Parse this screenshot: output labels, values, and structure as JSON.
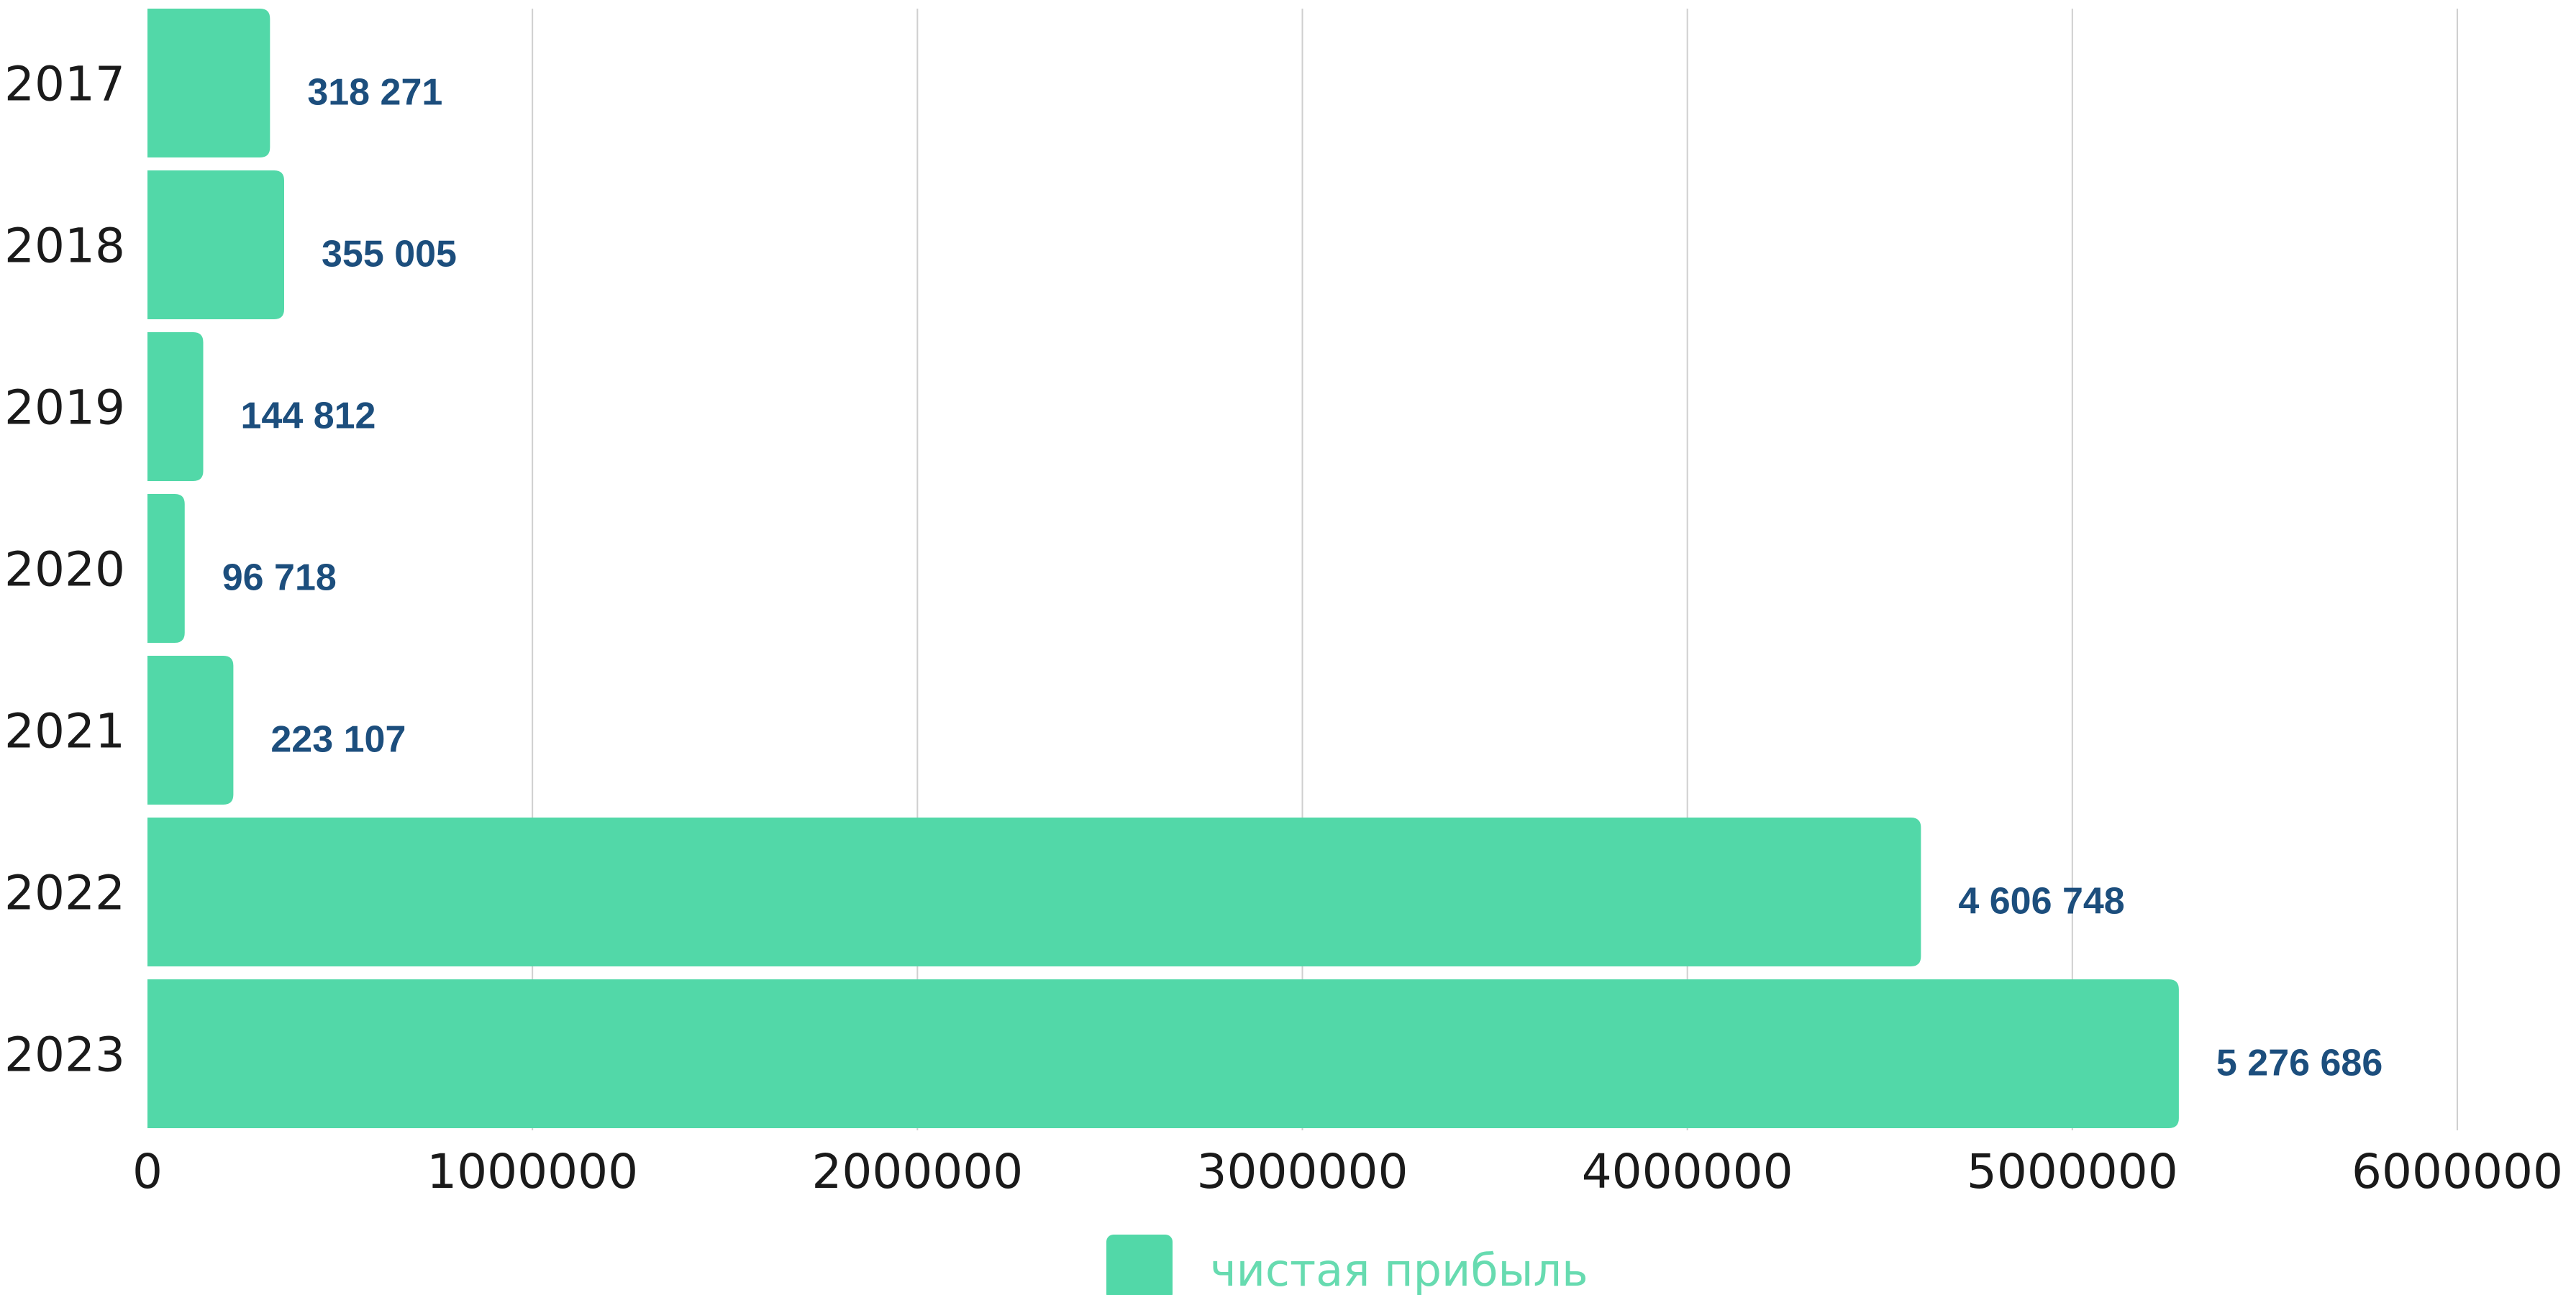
{
  "chart_data": {
    "type": "bar",
    "orientation": "horizontal",
    "categories": [
      "2017",
      "2018",
      "2019",
      "2020",
      "2021",
      "2022",
      "2023"
    ],
    "series": [
      {
        "name": "чистая прибыль",
        "values": [
          318271,
          355005,
          144812,
          96718,
          223107,
          4606748,
          5276686
        ],
        "value_labels": [
          "318 271",
          "355 005",
          "144 812",
          "96 718",
          "223 107",
          "4 606 748",
          "5 276 686"
        ],
        "color": "#52d8a8"
      }
    ],
    "title": "",
    "xlabel": "",
    "ylabel": "",
    "xlim": [
      0,
      6000000
    ],
    "x_ticks": [
      "0",
      "1000000",
      "2000000",
      "3000000",
      "4000000",
      "5000000",
      "6000000"
    ],
    "grid": "vertical",
    "legend_position": "bottom",
    "colors": {
      "bar": "#52d8a8",
      "value_label": "#1c4e7d",
      "legend_text": "#67dbb0",
      "grid": "#cfcfcf"
    }
  }
}
